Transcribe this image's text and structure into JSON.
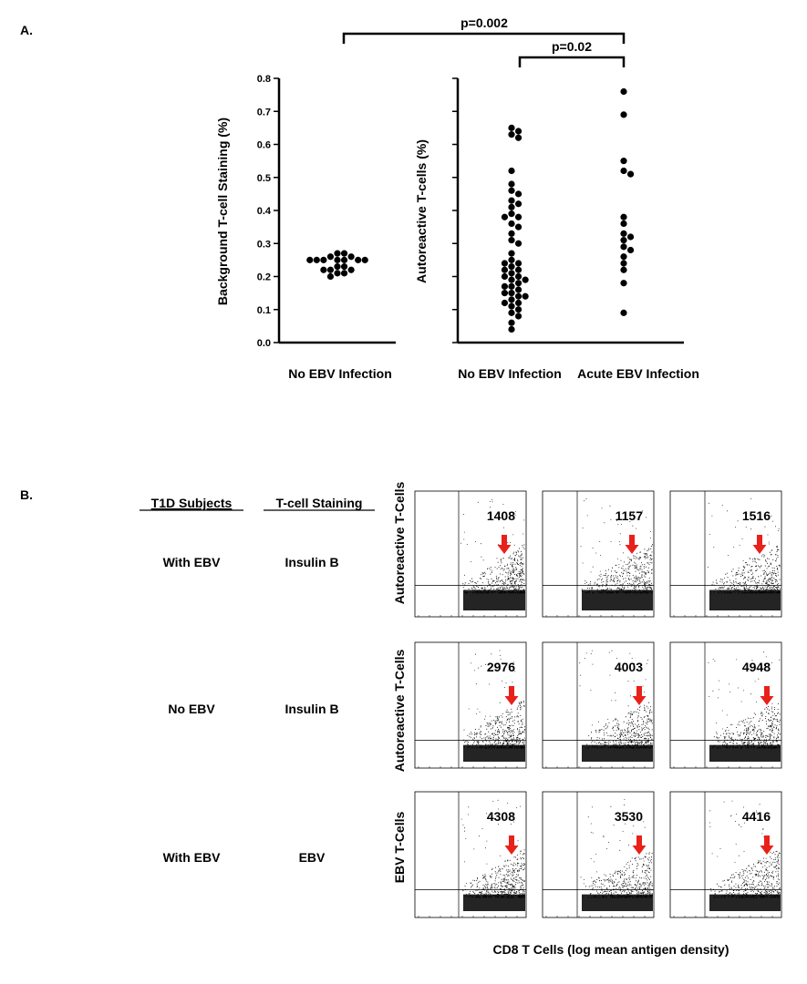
{
  "panel_labels": {
    "a": "A.",
    "b": "B."
  },
  "comparisons": [
    {
      "label": "p=0.002"
    },
    {
      "label": "p=0.02"
    }
  ],
  "chart_data": [
    {
      "type": "scatter",
      "ylabel": "Background T-cell Staining  (%)",
      "ylim": [
        0,
        0.8
      ],
      "yticks": [
        "0.0",
        "0.1",
        "0.2",
        "0.3",
        "0.4",
        "0.5",
        "0.6",
        "0.7",
        "0.8"
      ],
      "categories": [
        "No EBV Infection"
      ],
      "points": [
        [
          0.27,
          0.26,
          0.25,
          0.25,
          0.25,
          0.25,
          0.25,
          0.25,
          0.25,
          0.26,
          0.27,
          0.23,
          0.22,
          0.22,
          0.21,
          0.2,
          0.21,
          0.22,
          0.23
        ]
      ]
    },
    {
      "type": "scatter",
      "ylabel": "Autoreactive T-cells (%)",
      "ylim": [
        0,
        0.8
      ],
      "categories": [
        "No EBV Infection",
        "Acute EBV Infection"
      ],
      "points": [
        [
          0.65,
          0.64,
          0.63,
          0.62,
          0.52,
          0.48,
          0.46,
          0.45,
          0.43,
          0.42,
          0.41,
          0.39,
          0.38,
          0.38,
          0.36,
          0.35,
          0.33,
          0.31,
          0.3,
          0.27,
          0.25,
          0.24,
          0.24,
          0.23,
          0.22,
          0.21,
          0.2,
          0.19,
          0.18,
          0.17,
          0.16,
          0.15,
          0.15,
          0.14,
          0.13,
          0.12,
          0.12,
          0.11,
          0.1,
          0.09,
          0.08,
          0.06,
          0.04,
          0.2,
          0.19,
          0.22,
          0.17,
          0.14
        ],
        [
          0.76,
          0.69,
          0.55,
          0.52,
          0.51,
          0.38,
          0.36,
          0.33,
          0.32,
          0.31,
          0.29,
          0.28,
          0.26,
          0.24,
          0.22,
          0.18,
          0.09
        ]
      ]
    }
  ],
  "table": {
    "headers": [
      "T1D Subjects",
      "T-cell Staining"
    ],
    "rows": [
      {
        "subjects": "With EBV",
        "staining": "Insulin B",
        "ylabel": "Autoreactive T-Cells",
        "counts": [
          "1408",
          "1157",
          "1516"
        ]
      },
      {
        "subjects": "No EBV",
        "staining": "Insulin B",
        "ylabel": "Autoreactive T-Cells",
        "counts": [
          "2976",
          "4003",
          "4948"
        ]
      },
      {
        "subjects": "With EBV",
        "staining": "EBV",
        "ylabel": "EBV T-Cells",
        "counts": [
          "4308",
          "3530",
          "4416"
        ]
      }
    ]
  },
  "flow_xlabel": "CD8 T Cells (log mean antigen density)",
  "colors": {
    "arrow": "#e8211a",
    "ink": "#000000"
  }
}
